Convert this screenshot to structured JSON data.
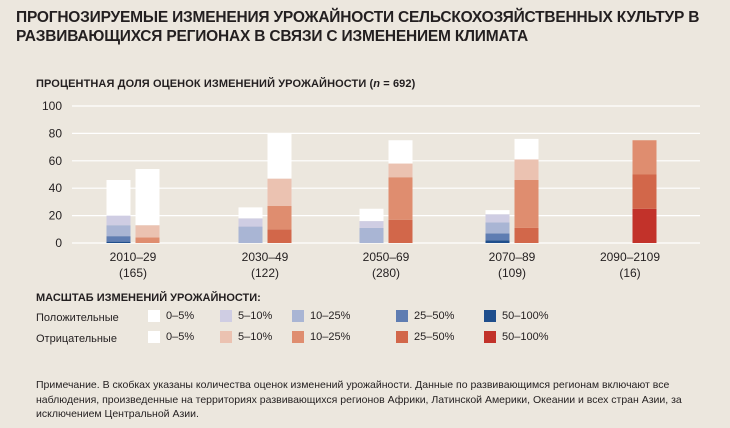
{
  "title": "ПРОГНОЗИРУЕМЫЕ ИЗМЕНЕНИЯ УРОЖАЙНОСТИ СЕЛЬСКОХОЗЯЙСТВЕННЫХ КУЛЬТУР В РАЗВИВАЮЩИХСЯ РЕГИОНАХ В СВЯЗИ С ИЗМЕНЕНИЕМ КЛИМАТА",
  "ylabel_prefix": "ПРОЦЕНТНАЯ ДОЛЯ ОЦЕНОК ИЗМЕНЕНИЙ УРОЖАЙНОСТИ (",
  "ylabel_n": "n",
  "ylabel_suffix": " = 692)",
  "colors": {
    "positive": [
      "#ffffff",
      "#cfcde3",
      "#a9b5d4",
      "#5f7db2",
      "#1f4e8c"
    ],
    "negative": [
      "#ffffff",
      "#ebc2b1",
      "#df8d6f",
      "#d2674a",
      "#c2322a"
    ]
  },
  "chart_data": {
    "type": "bar",
    "ylim": [
      0,
      100
    ],
    "yticks": [
      "0",
      "20",
      "40",
      "60",
      "80",
      "100"
    ],
    "categories": [
      {
        "period": "2010–29",
        "count": "(165)"
      },
      {
        "period": "2030–49",
        "count": "(122)"
      },
      {
        "period": "2050–69",
        "count": "(280)"
      },
      {
        "period": "2070–89",
        "count": "(109)"
      },
      {
        "period": "2090–2109",
        "count": "(16)"
      }
    ],
    "positive_bars": [
      [
        26,
        7,
        8,
        4,
        1
      ],
      [
        8,
        6,
        12,
        0,
        0
      ],
      [
        9,
        5,
        11,
        0,
        0
      ],
      [
        3,
        6,
        8,
        5,
        2
      ],
      [
        0,
        0,
        0,
        0,
        0
      ]
    ],
    "negative_bars": [
      [
        41,
        9,
        4,
        0,
        0
      ],
      [
        33,
        20,
        17,
        10,
        0
      ],
      [
        17,
        10,
        31,
        17,
        0
      ],
      [
        15,
        15,
        35,
        11,
        0
      ],
      [
        0,
        0,
        25,
        25,
        25
      ]
    ],
    "grid": true
  },
  "legend": {
    "title": "МАСШТАБ ИЗМЕНЕНИЙ УРОЖАЙНОСТИ:",
    "positive_label": "Положительные",
    "negative_label": "Отрицательные",
    "items": [
      "0–5%",
      "5–10%",
      "10–25%",
      "25–50%",
      "50–100%"
    ]
  },
  "note": "Примечание. В скобках указаны количества оценок изменений урожайности. Данные по развивающимся регионам включают все наблюдения, произведенные на территориях развивающихся регионов Африки, Латинской Америки, Океании и всех стран Азии, за исключением Центральной Азии."
}
